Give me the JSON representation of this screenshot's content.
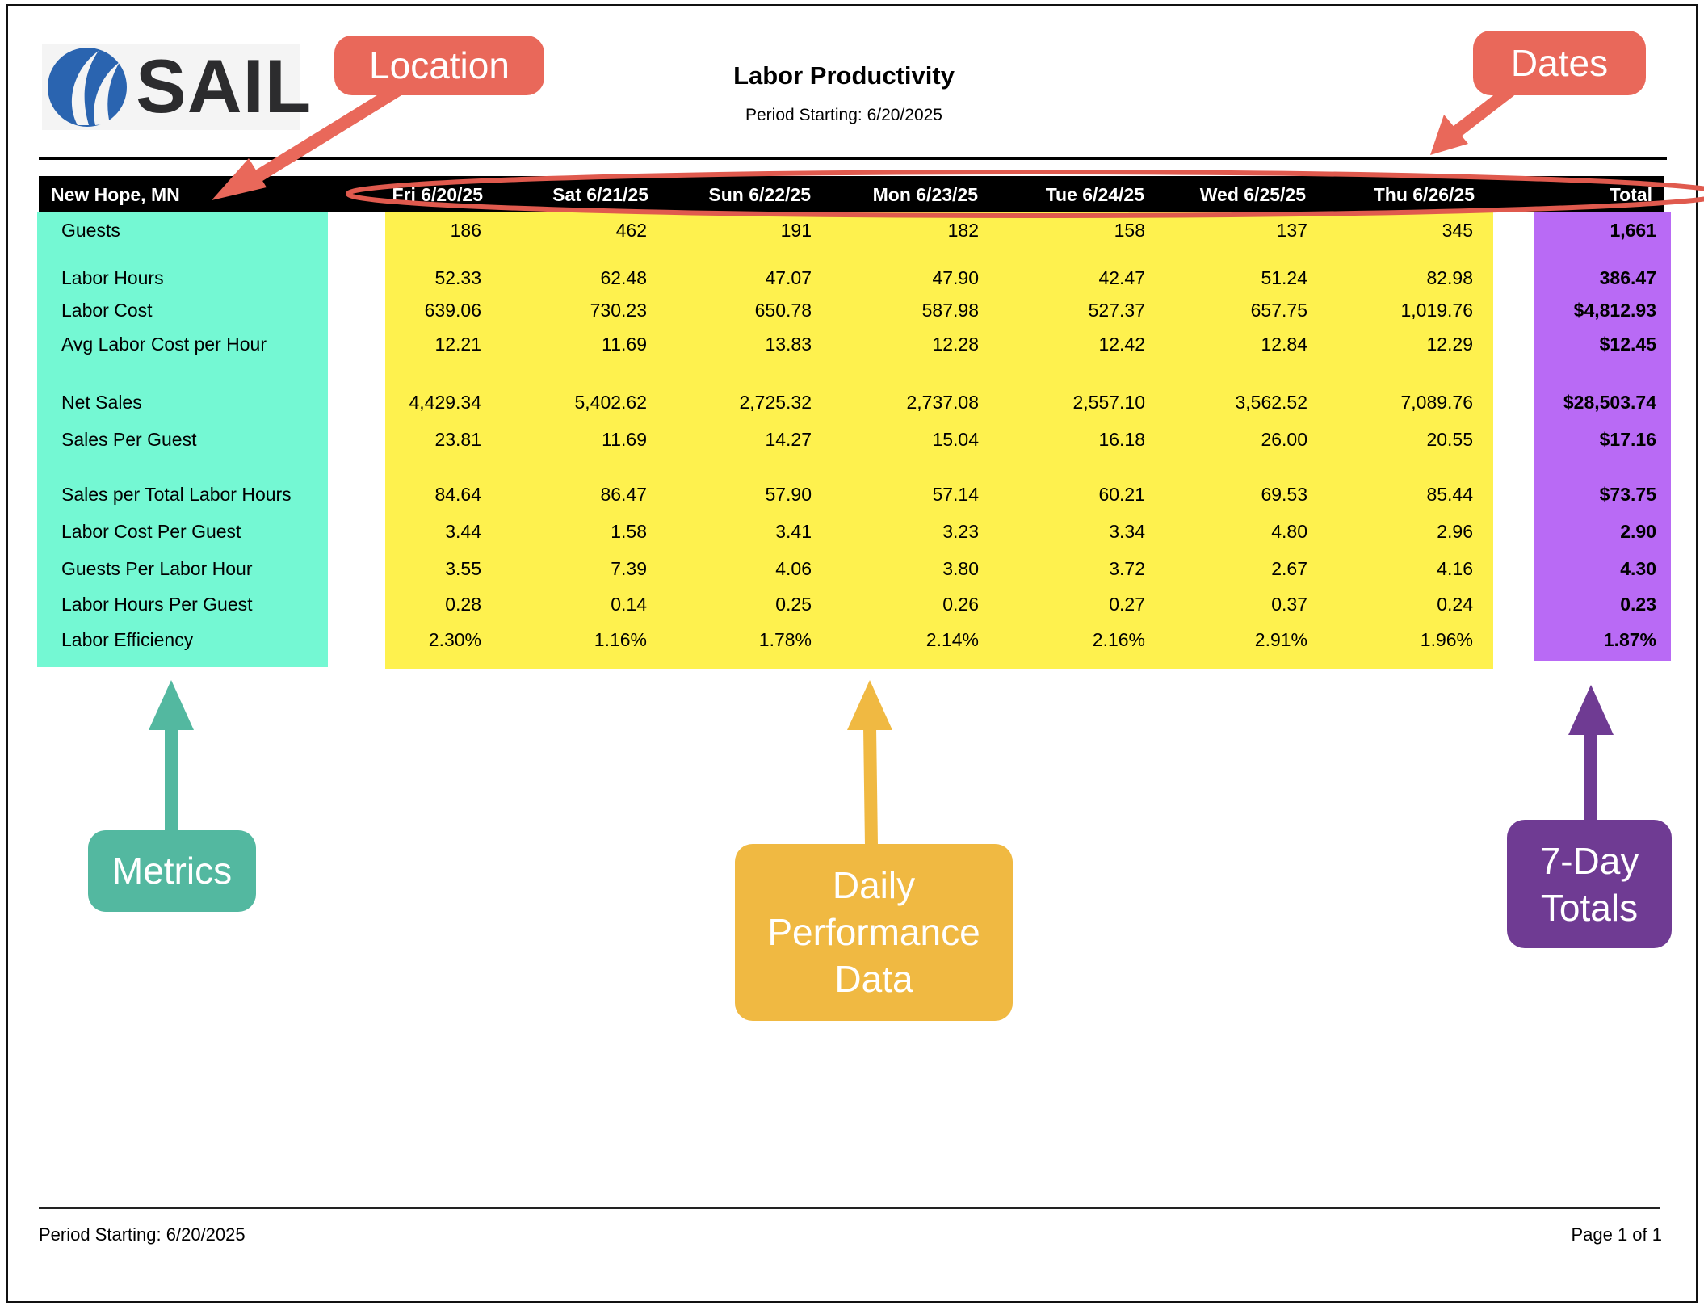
{
  "logo": {
    "text": "SAIL",
    "icon": "sail-logo-icon",
    "color_blue": "#2a64b0",
    "color_text": "#2c2c2e"
  },
  "header": {
    "title": "Labor Productivity",
    "subtitle": "Period Starting: 6/20/2025"
  },
  "table": {
    "location": "New Hope, MN",
    "days": [
      "Fri 6/20/25",
      "Sat 6/21/25",
      "Sun 6/22/25",
      "Mon 6/23/25",
      "Tue 6/24/25",
      "Wed 6/25/25",
      "Thu 6/26/25"
    ],
    "total_label": "Total",
    "rows": [
      {
        "label": "Guests",
        "values": [
          "186",
          "462",
          "191",
          "182",
          "158",
          "137",
          "345"
        ],
        "total": "1,661"
      },
      {
        "label": "Labor Hours",
        "values": [
          "52.33",
          "62.48",
          "47.07",
          "47.90",
          "42.47",
          "51.24",
          "82.98"
        ],
        "total": "386.47"
      },
      {
        "label": "Labor Cost",
        "values": [
          "639.06",
          "730.23",
          "650.78",
          "587.98",
          "527.37",
          "657.75",
          "1,019.76"
        ],
        "total": "$4,812.93"
      },
      {
        "label": "Avg Labor Cost per Hour",
        "values": [
          "12.21",
          "11.69",
          "13.83",
          "12.28",
          "12.42",
          "12.84",
          "12.29"
        ],
        "total": "$12.45"
      },
      {
        "label": "Net Sales",
        "values": [
          "4,429.34",
          "5,402.62",
          "2,725.32",
          "2,737.08",
          "2,557.10",
          "3,562.52",
          "7,089.76"
        ],
        "total": "$28,503.74"
      },
      {
        "label": "Sales Per Guest",
        "values": [
          "23.81",
          "11.69",
          "14.27",
          "15.04",
          "16.18",
          "26.00",
          "20.55"
        ],
        "total": "$17.16"
      },
      {
        "label": "Sales per Total Labor Hours",
        "values": [
          "84.64",
          "86.47",
          "57.90",
          "57.14",
          "60.21",
          "69.53",
          "85.44"
        ],
        "total": "$73.75"
      },
      {
        "label": "Labor Cost Per Guest",
        "values": [
          "3.44",
          "1.58",
          "3.41",
          "3.23",
          "3.34",
          "4.80",
          "2.96"
        ],
        "total": "2.90"
      },
      {
        "label": "Guests Per Labor Hour",
        "values": [
          "3.55",
          "7.39",
          "4.06",
          "3.80",
          "3.72",
          "2.67",
          "4.16"
        ],
        "total": "4.30"
      },
      {
        "label": "Labor Hours Per Guest",
        "values": [
          "0.28",
          "0.14",
          "0.25",
          "0.26",
          "0.27",
          "0.37",
          "0.24"
        ],
        "total": "0.23"
      },
      {
        "label": "Labor Efficiency",
        "values": [
          "2.30%",
          "1.16%",
          "1.78%",
          "2.14%",
          "2.16%",
          "2.91%",
          "1.96%"
        ],
        "total": "1.87%"
      }
    ]
  },
  "footer": {
    "left": "Period Starting: 6/20/2025",
    "right": "Page 1 of 1"
  },
  "annotations": {
    "location": "Location",
    "dates": "Dates",
    "metrics": "Metrics",
    "daily": [
      "Daily",
      "Performance",
      "Data"
    ],
    "totals": [
      "7-Day",
      "Totals"
    ]
  },
  "colors": {
    "metrics_panel": "#74f8d3",
    "daily_panel": "#fef14e",
    "totals_panel": "#b96af5",
    "callout_red": "#e9685a",
    "callout_teal": "#53b8a0",
    "callout_gold": "#f0b942",
    "callout_purple": "#6f3b93"
  }
}
